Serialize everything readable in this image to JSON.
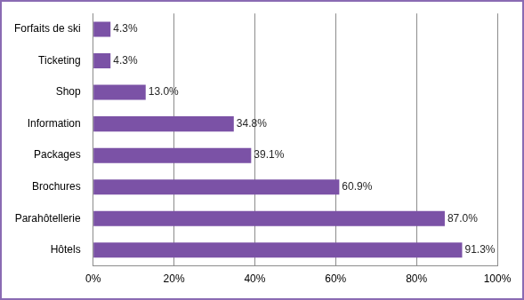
{
  "chart_data": {
    "type": "bar",
    "orientation": "horizontal",
    "categories": [
      "Forfaits de ski",
      "Ticketing",
      "Shop",
      "Information",
      "Packages",
      "Brochures",
      "Parahôtellerie",
      "Hôtels"
    ],
    "values": [
      4.3,
      4.3,
      13.0,
      34.8,
      39.1,
      60.9,
      87.0,
      91.3
    ],
    "value_labels": [
      "4.3%",
      "4.3%",
      "13.0%",
      "34.8%",
      "39.1%",
      "60.9%",
      "87.0%",
      "91.3%"
    ],
    "color": "#7b52a6",
    "xlim": [
      0,
      100
    ],
    "xticks": [
      {
        "value": 0,
        "label": "0%"
      },
      {
        "value": 20,
        "label": "20%"
      },
      {
        "value": 40,
        "label": "40%"
      },
      {
        "value": 60,
        "label": "60%"
      },
      {
        "value": 80,
        "label": "80%"
      },
      {
        "value": 100,
        "label": "100%"
      }
    ],
    "grid": true,
    "data_labels": true
  }
}
